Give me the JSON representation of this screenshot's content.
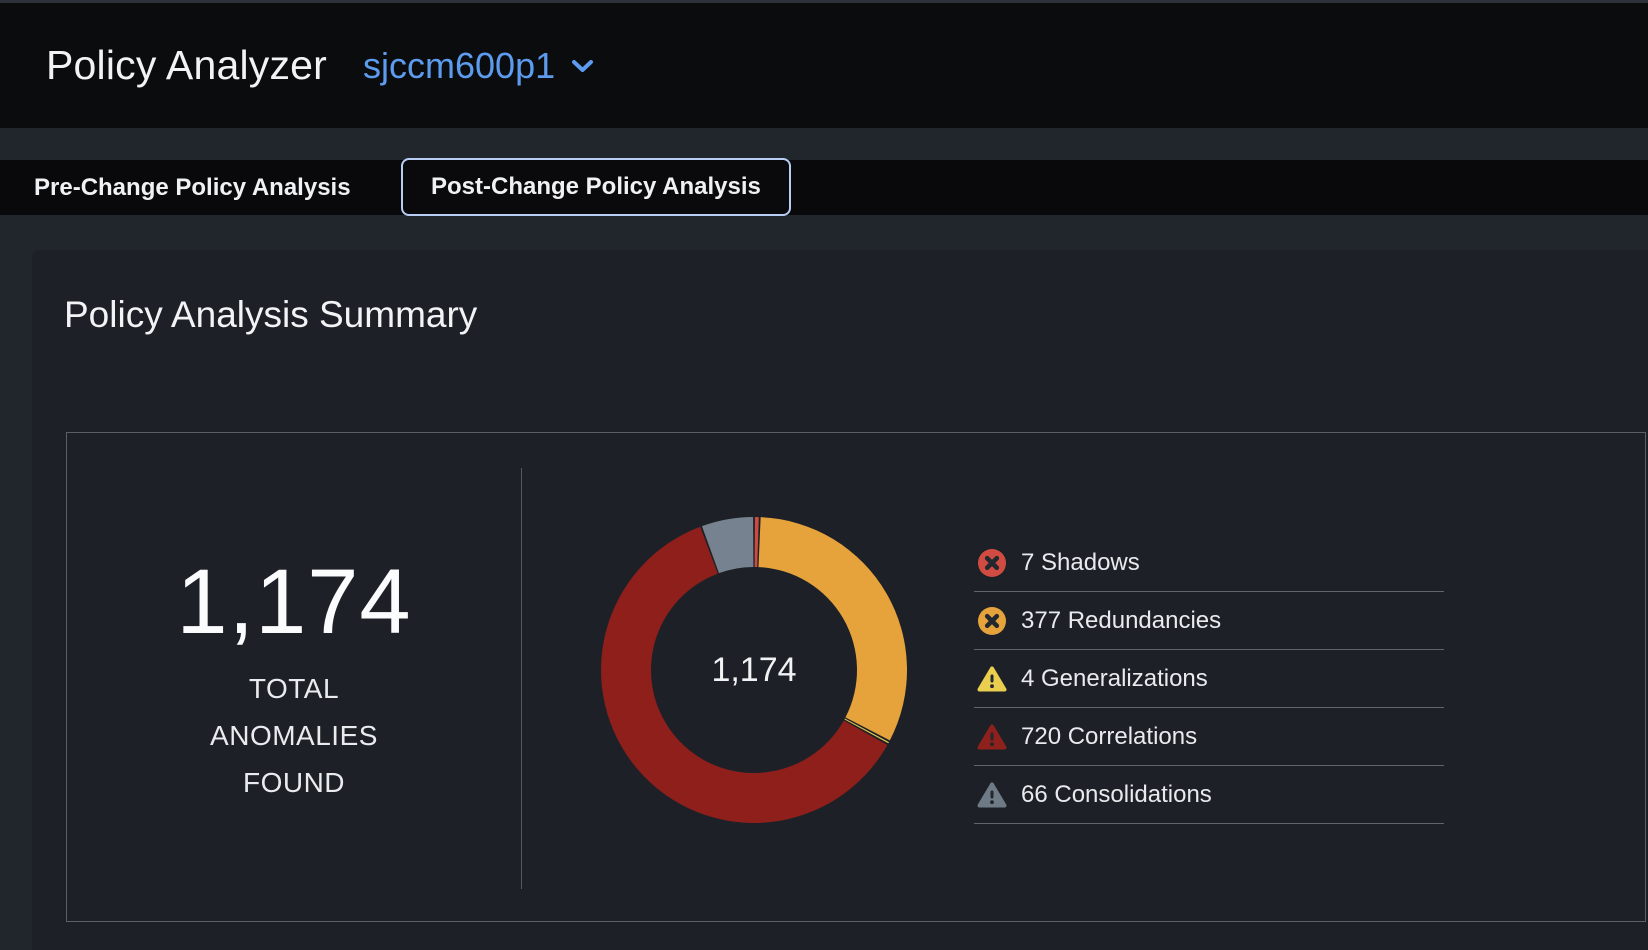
{
  "app": {
    "title": "Policy Analyzer"
  },
  "header": {
    "device_selector": {
      "value": "sjccm600p1",
      "icon": "chevron-down-icon"
    }
  },
  "tabs": [
    {
      "label": "Pre-Change Policy Analysis",
      "active": false
    },
    {
      "label": "Post-Change Policy Analysis",
      "active": true
    }
  ],
  "summary_card": {
    "title": "Policy Analysis Summary",
    "stat": {
      "value": "1,174",
      "label_lines": [
        "TOTAL",
        "ANOMALIES",
        "FOUND"
      ]
    }
  },
  "chart_data": {
    "type": "pie",
    "variant": "donut",
    "title": "Policy Analysis Summary",
    "center_label": "1,174",
    "total": 1174,
    "start_angle_deg": 0,
    "clockwise": true,
    "legend_position": "right",
    "segments": [
      {
        "label": "Shadows",
        "value": 7,
        "color": "#cc4a40",
        "icon": "circle-x",
        "icon_color": "#d04c42"
      },
      {
        "label": "Redundancies",
        "value": 377,
        "color": "#e6a33c",
        "icon": "circle-x",
        "icon_color": "#e6a33c"
      },
      {
        "label": "Generalizations",
        "value": 4,
        "color": "#e2c54d",
        "icon": "warning-triangle",
        "icon_color": "#e9ce4f"
      },
      {
        "label": "Correlations",
        "value": 720,
        "color": "#8e1f1b",
        "icon": "warning-triangle",
        "icon_color": "#8e211c"
      },
      {
        "label": "Consolidations",
        "value": 66,
        "color": "#76828f",
        "icon": "warning-triangle",
        "icon_color": "#6f7a87"
      }
    ]
  },
  "colors": {
    "page_bg": "#21252c",
    "header_bg": "#0b0c0e",
    "tabbar_bg": "#09090b",
    "card_bg": "#1d2127",
    "panel_border": "#5c5f64",
    "active_tab_border": "#b7cdf4",
    "accent_blue": "#5c9bee",
    "glyph_dark": "#23272e"
  }
}
